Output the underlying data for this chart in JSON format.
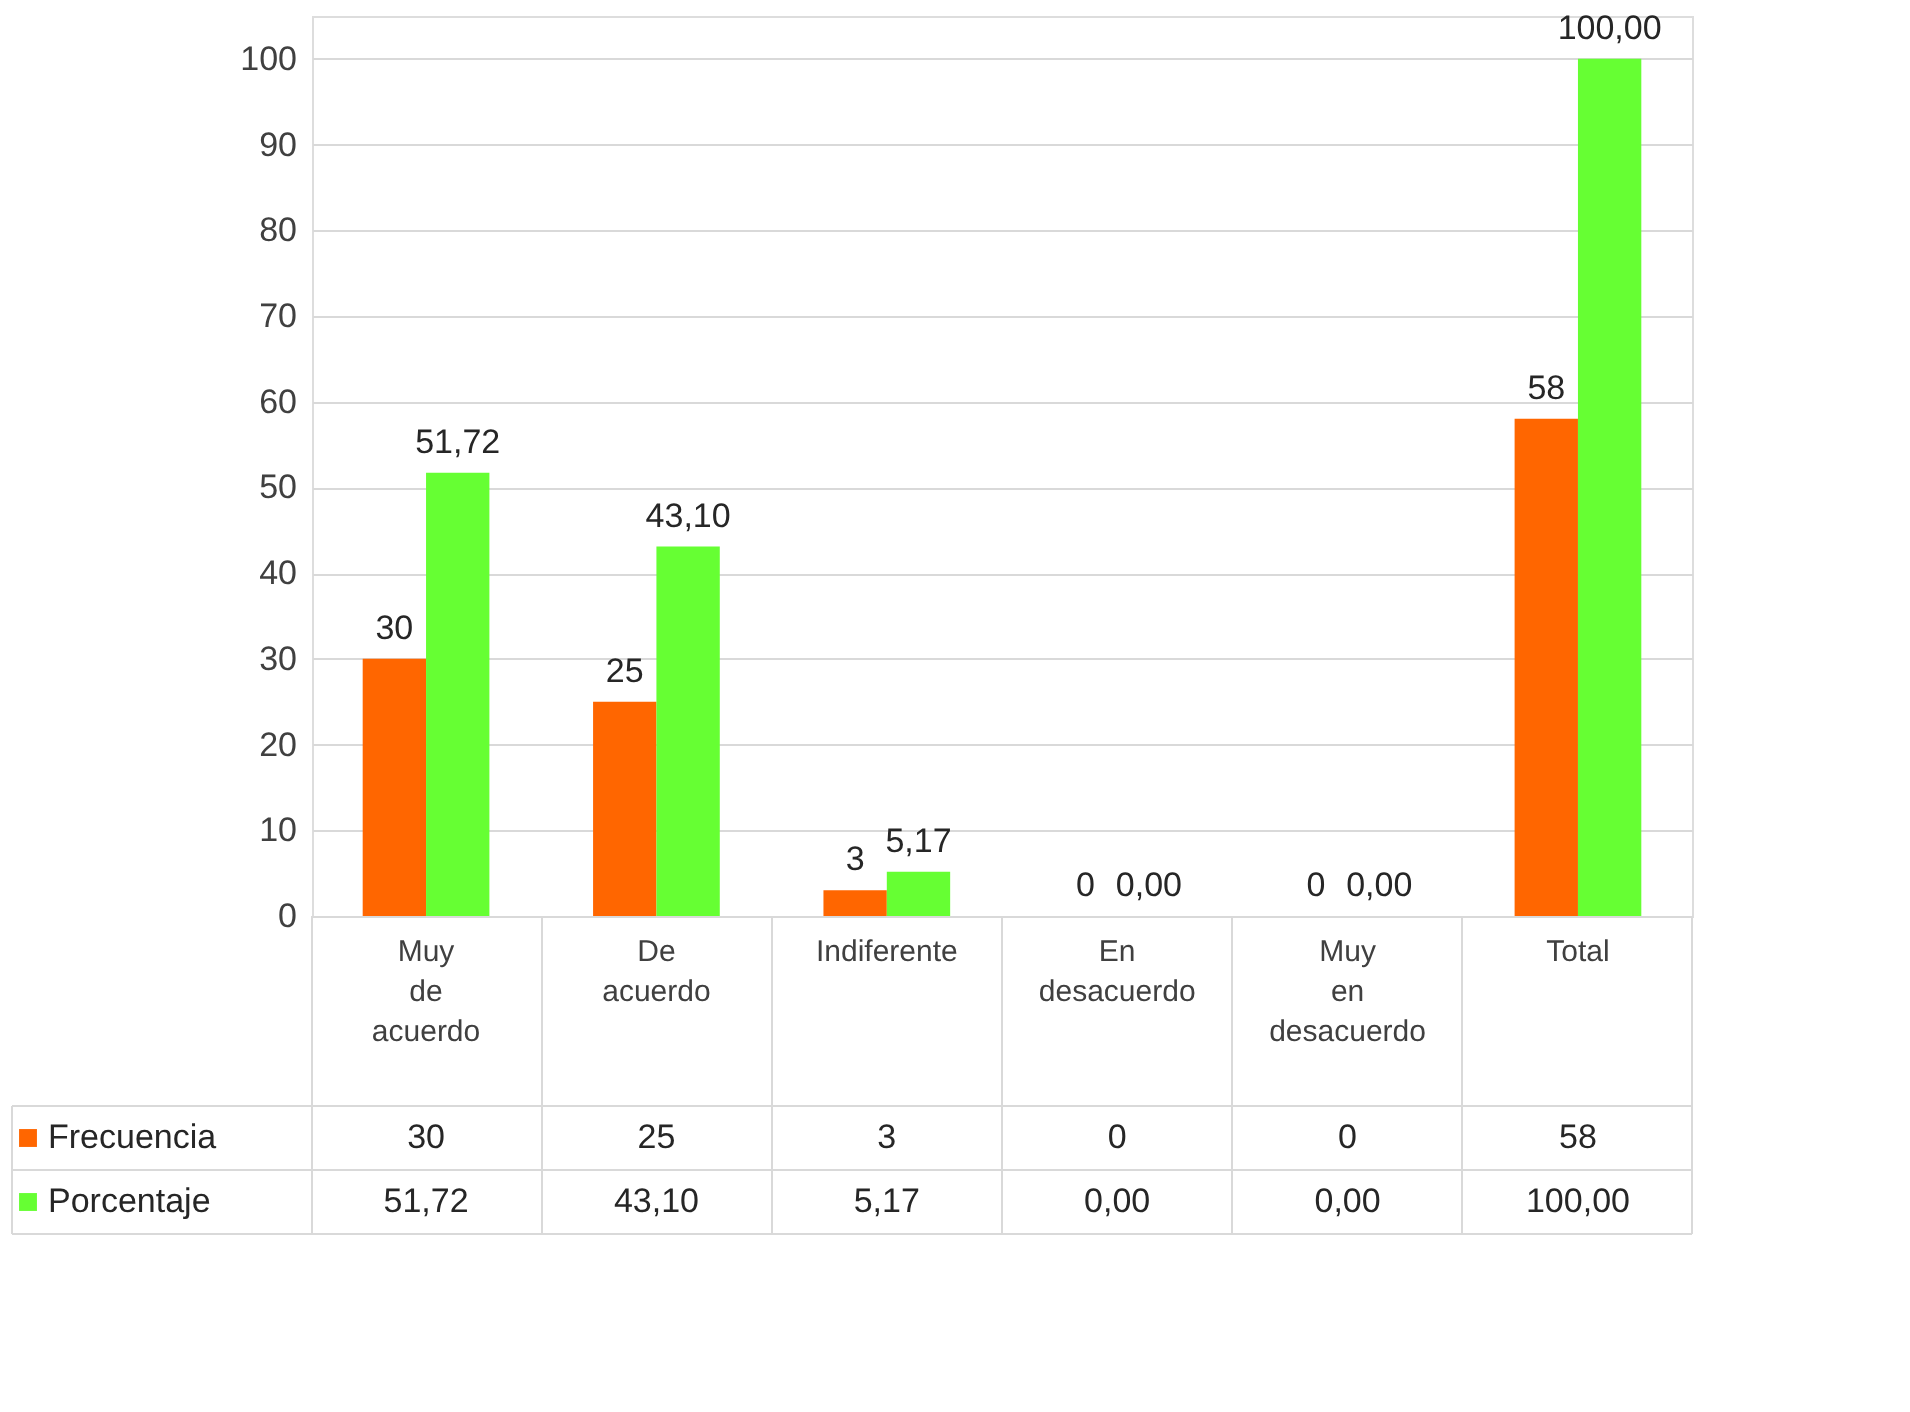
{
  "chart_data": {
    "type": "bar",
    "categories": [
      "Muy de acuerdo",
      "De acuerdo",
      "Indiferente",
      "En desacuerdo",
      "Muy en desacuerdo",
      "Total"
    ],
    "series": [
      {
        "name": "Frecuencia",
        "color": "#ff6600",
        "values": [
          30,
          25,
          3,
          0,
          0,
          58
        ],
        "value_labels": [
          "30",
          "25",
          "3",
          "0",
          "0",
          "58"
        ]
      },
      {
        "name": "Porcentaje",
        "color": "#66ff33",
        "values": [
          51.72,
          43.1,
          5.17,
          0,
          0,
          100
        ],
        "value_labels": [
          "51,72",
          "43,10",
          "5,17",
          "0,00",
          "0,00",
          "100,00"
        ]
      }
    ],
    "ylim": [
      0,
      105
    ],
    "yticks": [
      0,
      10,
      20,
      30,
      40,
      50,
      60,
      70,
      80,
      90,
      100
    ],
    "grid": "y",
    "legend": "bottom"
  }
}
